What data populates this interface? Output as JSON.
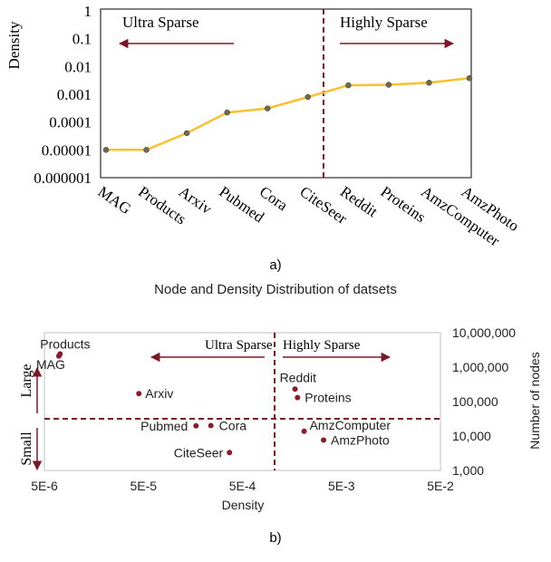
{
  "chart_data": [
    {
      "type": "line",
      "panel_label": "a)",
      "title": "",
      "xlabel": "",
      "ylabel": "Density",
      "y_scale": "log",
      "ylim": [
        1e-06,
        1
      ],
      "y_ticks": [
        "1",
        "0.1",
        "0.01",
        "0.001",
        "0.0001",
        "0.00001",
        "0.000001"
      ],
      "categories": [
        "MAG",
        "Products",
        "Arxiv",
        "Pubmed",
        "Cora",
        "CiteSeer",
        "Reddit",
        "Proteins",
        "AmzComputer",
        "AmzPhoto"
      ],
      "values": [
        1e-05,
        1e-05,
        4e-05,
        0.00022,
        0.00031,
        0.0008,
        0.0021,
        0.0022,
        0.0026,
        0.0038
      ],
      "line_color": "#fbc02d",
      "marker_color": "#6b6b4f",
      "divider_color": "#7b1a26",
      "regions": [
        {
          "label": "Ultra Sparse",
          "direction": "left"
        },
        {
          "label": "Highly Sparse",
          "direction": "right"
        }
      ],
      "grid": false
    },
    {
      "type": "scatter",
      "panel_label": "b)",
      "title": "Node and Density Distribution of datsets",
      "xlabel": "Density",
      "ylabel": "Number of nodes",
      "x_scale": "log",
      "y_scale": "log",
      "xlim": [
        5e-06,
        0.05
      ],
      "ylim": [
        1000,
        10000000
      ],
      "x_ticks": [
        "5E-6",
        "5E-5",
        "5E-4",
        "5E-3",
        "5E-2"
      ],
      "y_ticks": [
        "10,000,000",
        "1,000,000",
        "100,000",
        "10,000",
        "1,000"
      ],
      "points": [
        {
          "label": "Products",
          "x": 7.2e-06,
          "y": 2400000
        },
        {
          "label": "MAG",
          "x": 7e-06,
          "y": 2100000
        },
        {
          "label": "Arxiv",
          "x": 4.5e-05,
          "y": 170000
        },
        {
          "label": "Pubmed",
          "x": 0.00017,
          "y": 19700
        },
        {
          "label": "Cora",
          "x": 0.00024,
          "y": 20000
        },
        {
          "label": "CiteSeer",
          "x": 0.00037,
          "y": 3300
        },
        {
          "label": "Reddit",
          "x": 0.0017,
          "y": 230000
        },
        {
          "label": "Proteins",
          "x": 0.0018,
          "y": 130000
        },
        {
          "label": "AmzComputer",
          "x": 0.0021,
          "y": 13700
        },
        {
          "label": "AmzPhoto",
          "x": 0.0033,
          "y": 7600
        }
      ],
      "marker_color": "#8b1a2b",
      "divider_color": "#7b1a26",
      "regions": [
        {
          "label": "Ultra Sparse",
          "direction": "left"
        },
        {
          "label": "Highly Sparse",
          "direction": "right"
        }
      ],
      "size_labels": [
        "Large",
        "Small"
      ],
      "grid": false
    }
  ]
}
